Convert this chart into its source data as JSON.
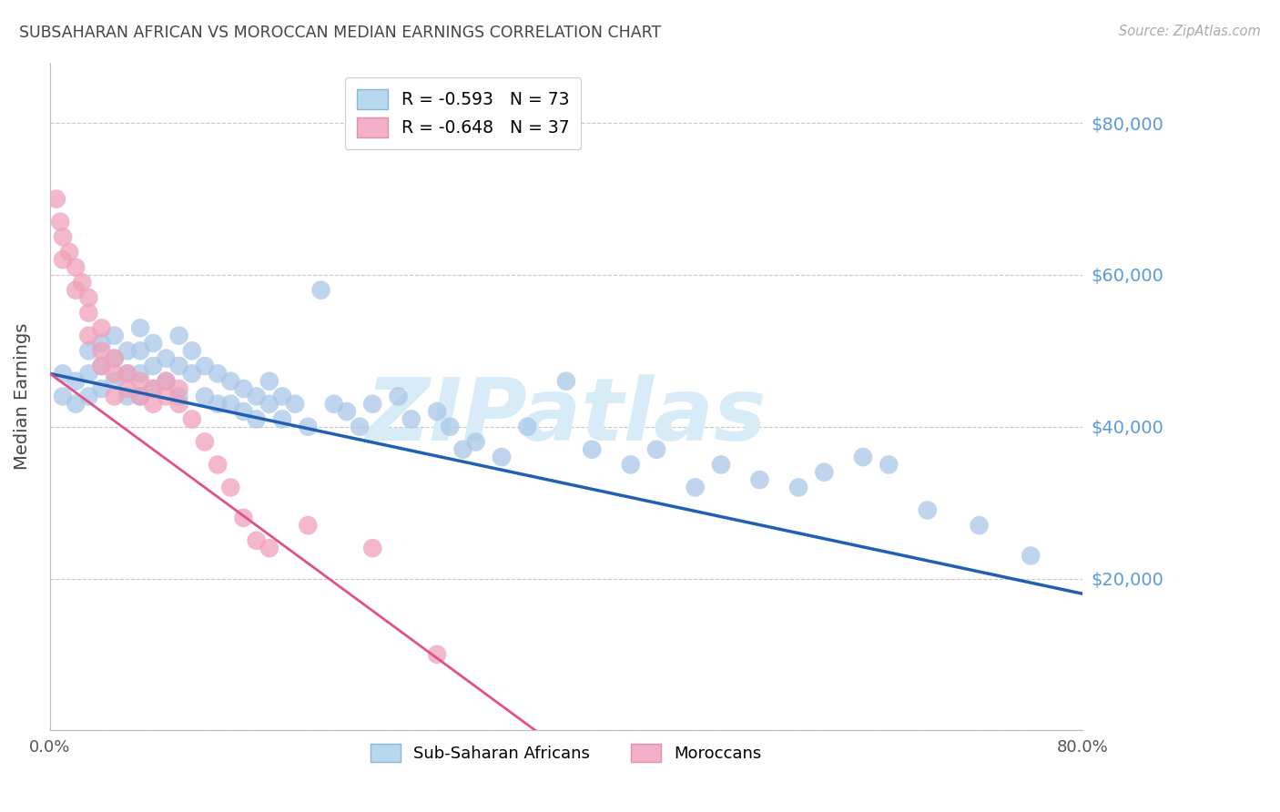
{
  "title": "SUBSAHARAN AFRICAN VS MOROCCAN MEDIAN EARNINGS CORRELATION CHART",
  "source": "Source: ZipAtlas.com",
  "ylabel": "Median Earnings",
  "yticks": [
    0,
    20000,
    40000,
    60000,
    80000
  ],
  "ytick_labels": [
    "",
    "$20,000",
    "$40,000",
    "$60,000",
    "$80,000"
  ],
  "ymin": 0,
  "ymax": 88000,
  "xmin": 0.0,
  "xmax": 0.8,
  "background_color": "#ffffff",
  "grid_color": "#c8c8c8",
  "title_color": "#444444",
  "source_color": "#aaaaaa",
  "ytick_color": "#5b9bd5",
  "ylabel_color": "#444444",
  "blue_scatter_color": "#a8c8e8",
  "blue_line_color": "#2060b0",
  "pink_scatter_color": "#f0a0b8",
  "pink_line_color": "#e0508a",
  "blue_label": "R = -0.593   N = 73",
  "pink_label": "R = -0.648   N = 37",
  "blue_legend_color": "#b8d8f0",
  "pink_legend_color": "#f4b0c8",
  "blue_x": [
    0.01,
    0.01,
    0.02,
    0.02,
    0.03,
    0.03,
    0.03,
    0.04,
    0.04,
    0.04,
    0.05,
    0.05,
    0.05,
    0.06,
    0.06,
    0.06,
    0.07,
    0.07,
    0.07,
    0.07,
    0.08,
    0.08,
    0.08,
    0.09,
    0.09,
    0.1,
    0.1,
    0.1,
    0.11,
    0.11,
    0.12,
    0.12,
    0.13,
    0.13,
    0.14,
    0.14,
    0.15,
    0.15,
    0.16,
    0.16,
    0.17,
    0.17,
    0.18,
    0.18,
    0.19,
    0.2,
    0.21,
    0.22,
    0.23,
    0.24,
    0.25,
    0.27,
    0.28,
    0.3,
    0.31,
    0.32,
    0.33,
    0.35,
    0.37,
    0.4,
    0.42,
    0.45,
    0.47,
    0.5,
    0.52,
    0.55,
    0.58,
    0.6,
    0.63,
    0.65,
    0.68,
    0.72,
    0.76
  ],
  "blue_y": [
    47000,
    44000,
    46000,
    43000,
    50000,
    47000,
    44000,
    51000,
    48000,
    45000,
    52000,
    49000,
    46000,
    50000,
    47000,
    44000,
    53000,
    50000,
    47000,
    44000,
    51000,
    48000,
    45000,
    49000,
    46000,
    52000,
    48000,
    44000,
    50000,
    47000,
    48000,
    44000,
    47000,
    43000,
    46000,
    43000,
    45000,
    42000,
    44000,
    41000,
    46000,
    43000,
    44000,
    41000,
    43000,
    40000,
    58000,
    43000,
    42000,
    40000,
    43000,
    44000,
    41000,
    42000,
    40000,
    37000,
    38000,
    36000,
    40000,
    46000,
    37000,
    35000,
    37000,
    32000,
    35000,
    33000,
    32000,
    34000,
    36000,
    35000,
    29000,
    27000,
    23000
  ],
  "pink_x": [
    0.005,
    0.008,
    0.01,
    0.01,
    0.015,
    0.02,
    0.02,
    0.025,
    0.03,
    0.03,
    0.03,
    0.04,
    0.04,
    0.04,
    0.05,
    0.05,
    0.05,
    0.06,
    0.06,
    0.07,
    0.07,
    0.08,
    0.08,
    0.09,
    0.09,
    0.1,
    0.1,
    0.11,
    0.12,
    0.13,
    0.14,
    0.15,
    0.16,
    0.17,
    0.2,
    0.25,
    0.3
  ],
  "pink_y": [
    70000,
    67000,
    65000,
    62000,
    63000,
    61000,
    58000,
    59000,
    57000,
    55000,
    52000,
    53000,
    50000,
    48000,
    49000,
    47000,
    44000,
    47000,
    45000,
    46000,
    44000,
    45000,
    43000,
    46000,
    44000,
    45000,
    43000,
    41000,
    38000,
    35000,
    32000,
    28000,
    25000,
    24000,
    27000,
    24000,
    10000
  ],
  "watermark": "ZIPatlas",
  "watermark_color": "#d8ecf8"
}
